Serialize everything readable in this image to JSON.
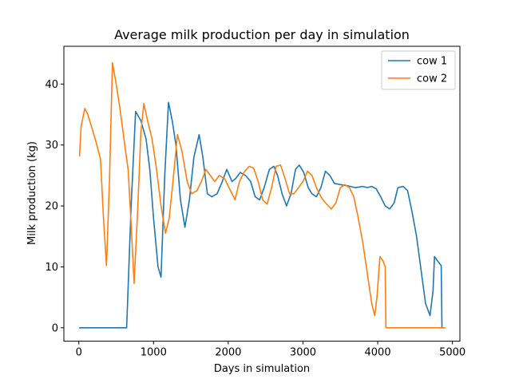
{
  "chart_data": {
    "type": "line",
    "title": "Average milk production per day in simulation",
    "xlabel": "Days in simulation",
    "ylabel": "Milk production (kg)",
    "xlim": [
      -200,
      5100
    ],
    "ylim": [
      -2.2,
      46.2
    ],
    "xticks": [
      0,
      1000,
      2000,
      3000,
      4000,
      5000
    ],
    "yticks": [
      0,
      10,
      20,
      30,
      40
    ],
    "grid": false,
    "legend": "top-right",
    "series": [
      {
        "name": "cow 1",
        "color": "#1f77b4",
        "points": [
          [
            10,
            0
          ],
          [
            300,
            0
          ],
          [
            640,
            0
          ],
          [
            700,
            20
          ],
          [
            760,
            35.5
          ],
          [
            830,
            34
          ],
          [
            900,
            31
          ],
          [
            950,
            26
          ],
          [
            1000,
            18
          ],
          [
            1060,
            10
          ],
          [
            1100,
            8.3
          ],
          [
            1150,
            25
          ],
          [
            1200,
            37
          ],
          [
            1250,
            34
          ],
          [
            1300,
            30
          ],
          [
            1360,
            21
          ],
          [
            1420,
            16.5
          ],
          [
            1480,
            21
          ],
          [
            1540,
            28
          ],
          [
            1610,
            31.7
          ],
          [
            1660,
            28
          ],
          [
            1720,
            22
          ],
          [
            1780,
            21.5
          ],
          [
            1850,
            22
          ],
          [
            1920,
            24
          ],
          [
            1980,
            26
          ],
          [
            2050,
            24
          ],
          [
            2100,
            24.5
          ],
          [
            2160,
            25.5
          ],
          [
            2230,
            25
          ],
          [
            2300,
            24
          ],
          [
            2360,
            21.5
          ],
          [
            2420,
            21
          ],
          [
            2480,
            23
          ],
          [
            2550,
            26
          ],
          [
            2610,
            26.5
          ],
          [
            2660,
            25
          ],
          [
            2720,
            22
          ],
          [
            2780,
            20
          ],
          [
            2840,
            22
          ],
          [
            2900,
            26
          ],
          [
            2950,
            26.7
          ],
          [
            3010,
            25.5
          ],
          [
            3070,
            23
          ],
          [
            3120,
            22
          ],
          [
            3180,
            21.5
          ],
          [
            3240,
            23
          ],
          [
            3300,
            25.7
          ],
          [
            3360,
            25
          ],
          [
            3420,
            23.7
          ],
          [
            3500,
            23.5
          ],
          [
            3600,
            23.3
          ],
          [
            3700,
            23
          ],
          [
            3800,
            23.2
          ],
          [
            3860,
            23
          ],
          [
            3920,
            23.2
          ],
          [
            3980,
            22.8
          ],
          [
            4040,
            21.5
          ],
          [
            4100,
            20
          ],
          [
            4160,
            19.5
          ],
          [
            4220,
            20.5
          ],
          [
            4270,
            23
          ],
          [
            4340,
            23.2
          ],
          [
            4400,
            22.5
          ],
          [
            4460,
            19
          ],
          [
            4520,
            15
          ],
          [
            4580,
            9.5
          ],
          [
            4640,
            4
          ],
          [
            4700,
            2
          ],
          [
            4740,
            6
          ],
          [
            4760,
            11.7
          ],
          [
            4800,
            11
          ],
          [
            4850,
            10.2
          ],
          [
            4860,
            0
          ],
          [
            4880,
            0
          ]
        ]
      },
      {
        "name": "cow 2",
        "color": "#ff7f0e",
        "points": [
          [
            10,
            28.2
          ],
          [
            30,
            33
          ],
          [
            80,
            36
          ],
          [
            120,
            35
          ],
          [
            170,
            33
          ],
          [
            230,
            30.5
          ],
          [
            290,
            27.7
          ],
          [
            330,
            18
          ],
          [
            370,
            10.2
          ],
          [
            410,
            24
          ],
          [
            450,
            43.5
          ],
          [
            500,
            40
          ],
          [
            550,
            36
          ],
          [
            620,
            29.5
          ],
          [
            660,
            26
          ],
          [
            700,
            17
          ],
          [
            740,
            7.3
          ],
          [
            790,
            20
          ],
          [
            830,
            32
          ],
          [
            870,
            36.8
          ],
          [
            920,
            34
          ],
          [
            980,
            31
          ],
          [
            1040,
            26
          ],
          [
            1100,
            20
          ],
          [
            1160,
            15.5
          ],
          [
            1210,
            18
          ],
          [
            1260,
            24
          ],
          [
            1320,
            31.7
          ],
          [
            1380,
            29
          ],
          [
            1450,
            24
          ],
          [
            1510,
            22
          ],
          [
            1580,
            22.5
          ],
          [
            1640,
            24
          ],
          [
            1700,
            26
          ],
          [
            1760,
            25
          ],
          [
            1820,
            24
          ],
          [
            1880,
            25
          ],
          [
            1950,
            24.5
          ],
          [
            2030,
            22.5
          ],
          [
            2090,
            21
          ],
          [
            2150,
            24
          ],
          [
            2210,
            25.5
          ],
          [
            2280,
            26.5
          ],
          [
            2340,
            26.2
          ],
          [
            2400,
            24
          ],
          [
            2460,
            21
          ],
          [
            2520,
            20.3
          ],
          [
            2580,
            23
          ],
          [
            2640,
            26.5
          ],
          [
            2700,
            26.7
          ],
          [
            2760,
            24.5
          ],
          [
            2820,
            22
          ],
          [
            2880,
            22
          ],
          [
            2940,
            23
          ],
          [
            3000,
            24
          ],
          [
            3060,
            25.7
          ],
          [
            3120,
            25
          ],
          [
            3180,
            23
          ],
          [
            3240,
            21.5
          ],
          [
            3300,
            20.5
          ],
          [
            3380,
            19.5
          ],
          [
            3440,
            20.5
          ],
          [
            3500,
            23
          ],
          [
            3560,
            23.5
          ],
          [
            3620,
            23
          ],
          [
            3680,
            21.5
          ],
          [
            3740,
            18
          ],
          [
            3800,
            14
          ],
          [
            3860,
            9
          ],
          [
            3920,
            4
          ],
          [
            3960,
            2
          ],
          [
            3990,
            5
          ],
          [
            4030,
            11.7
          ],
          [
            4070,
            11
          ],
          [
            4100,
            10
          ],
          [
            4110,
            0
          ],
          [
            4400,
            0
          ],
          [
            4900,
            0
          ]
        ]
      }
    ]
  }
}
